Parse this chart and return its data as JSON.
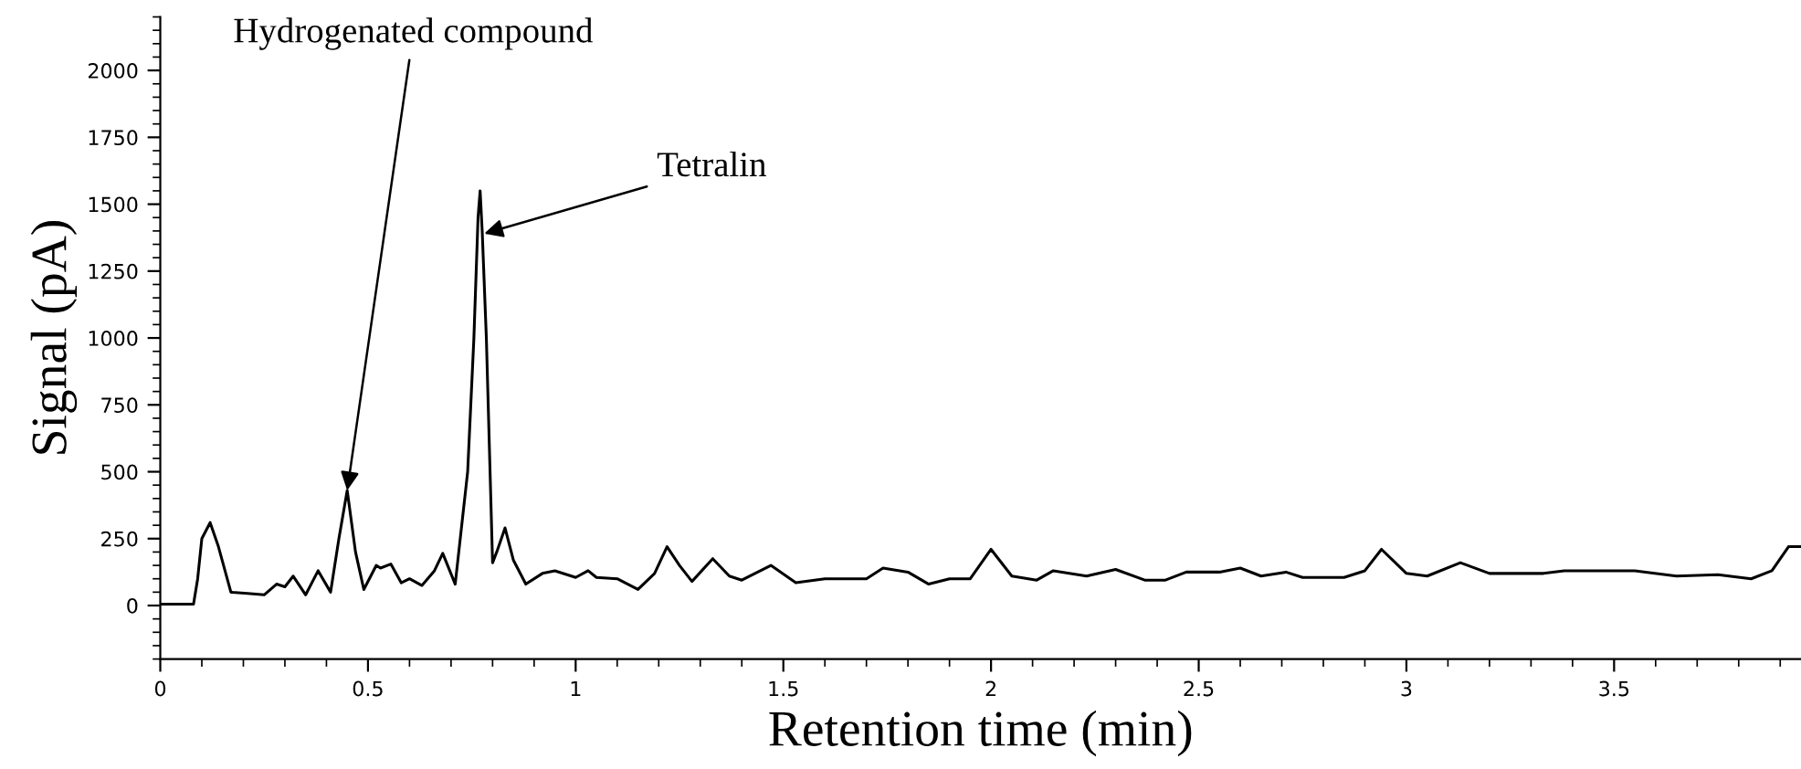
{
  "chart_data": {
    "type": "line",
    "xlabel": "Retention time (min)",
    "ylabel": "Signal (pA)",
    "xlim": [
      0,
      3.95
    ],
    "xticks": [
      0,
      0.5,
      1,
      1.5,
      2,
      2.5,
      3,
      3.5
    ],
    "ylim": [
      -200,
      2200
    ],
    "yticks": [
      0,
      250,
      500,
      750,
      1000,
      1250,
      1500,
      1750,
      2000
    ],
    "grid": false,
    "legend": false,
    "marker": "none",
    "line_style": "solid",
    "annotations": [
      {
        "text": "Hydrogenated compound",
        "x": 0.45,
        "y": 430
      },
      {
        "text": "Tetralin",
        "x": 0.78,
        "y": 1390
      }
    ],
    "series": [
      {
        "color": "#000000",
        "x": [
          0,
          0.08,
          0.09,
          0.1,
          0.12,
          0.14,
          0.17,
          0.21,
          0.25,
          0.28,
          0.3,
          0.32,
          0.35,
          0.38,
          0.41,
          0.43,
          0.45,
          0.47,
          0.49,
          0.52,
          0.53,
          0.555,
          0.58,
          0.6,
          0.63,
          0.66,
          0.68,
          0.71,
          0.74,
          0.755,
          0.765,
          0.77,
          0.775,
          0.785,
          0.8,
          0.81,
          0.83,
          0.85,
          0.88,
          0.92,
          0.95,
          1.0,
          1.03,
          1.05,
          1.1,
          1.15,
          1.19,
          1.22,
          1.25,
          1.28,
          1.33,
          1.37,
          1.4,
          1.47,
          1.53,
          1.6,
          1.7,
          1.74,
          1.8,
          1.85,
          1.9,
          1.95,
          2.0,
          2.05,
          2.11,
          2.15,
          2.23,
          2.3,
          2.37,
          2.42,
          2.47,
          2.55,
          2.6,
          2.65,
          2.71,
          2.75,
          2.85,
          2.9,
          2.94,
          3.0,
          3.05,
          3.13,
          3.2,
          3.33,
          3.38,
          3.55,
          3.65,
          3.75,
          3.83,
          3.88,
          3.92,
          3.95
        ],
        "values": [
          5,
          5,
          100,
          250,
          310,
          220,
          50,
          45,
          40,
          80,
          70,
          110,
          40,
          130,
          50,
          250,
          430,
          200,
          60,
          150,
          140,
          155,
          85,
          100,
          75,
          130,
          195,
          80,
          500,
          1000,
          1450,
          1550,
          1400,
          1000,
          160,
          200,
          290,
          170,
          80,
          120,
          130,
          105,
          130,
          105,
          100,
          60,
          120,
          220,
          150,
          90,
          175,
          110,
          95,
          150,
          85,
          100,
          100,
          140,
          125,
          80,
          100,
          100,
          210,
          110,
          95,
          130,
          110,
          135,
          95,
          95,
          125,
          125,
          140,
          110,
          125,
          105,
          105,
          130,
          210,
          120,
          110,
          160,
          120,
          120,
          130,
          130,
          110,
          115,
          100,
          130,
          220,
          220
        ]
      }
    ]
  }
}
